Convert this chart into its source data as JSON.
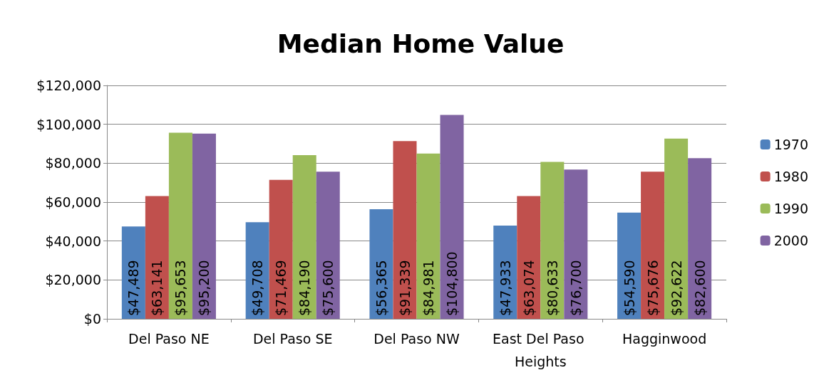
{
  "chart_data": {
    "type": "bar",
    "title": "Median Home Value",
    "categories": [
      "Del Paso NE",
      "Del Paso SE",
      "Del Paso NW",
      "East Del Paso Heights",
      "Hagginwood"
    ],
    "series": [
      {
        "name": "1970",
        "color": "#4f81bd",
        "values": [
          47489,
          49708,
          56365,
          47933,
          54590
        ],
        "value_labels": [
          "$47,489",
          "$49,708",
          "$56,365",
          "$47,933",
          "$54,590"
        ]
      },
      {
        "name": "1980",
        "color": "#c0504d",
        "values": [
          63141,
          71469,
          91339,
          63074,
          75676
        ],
        "value_labels": [
          "$63,141",
          "$71,469",
          "$91,339",
          "$63,074",
          "$75,676"
        ]
      },
      {
        "name": "1990",
        "color": "#9bbb59",
        "values": [
          95653,
          84190,
          84981,
          80633,
          92622
        ],
        "value_labels": [
          "$95,653",
          "$84,190",
          "$84,981",
          "$80,633",
          "$92,622"
        ]
      },
      {
        "name": "2000",
        "color": "#8064a2",
        "values": [
          95200,
          75600,
          104800,
          76700,
          82600
        ],
        "value_labels": [
          "$95,200",
          "$75,600",
          "$104,800",
          "$76,700",
          "$82,600"
        ]
      }
    ],
    "ylim": [
      0,
      120000
    ],
    "yticks": [
      {
        "value": 0,
        "label": "$0"
      },
      {
        "value": 20000,
        "label": "$20,000"
      },
      {
        "value": 40000,
        "label": "$40,000"
      },
      {
        "value": 60000,
        "label": "$60,000"
      },
      {
        "value": 80000,
        "label": "$80,000"
      },
      {
        "value": 100000,
        "label": "$100,000"
      },
      {
        "value": 120000,
        "label": "$120,000"
      }
    ],
    "grid": "y",
    "legend": "right"
  }
}
